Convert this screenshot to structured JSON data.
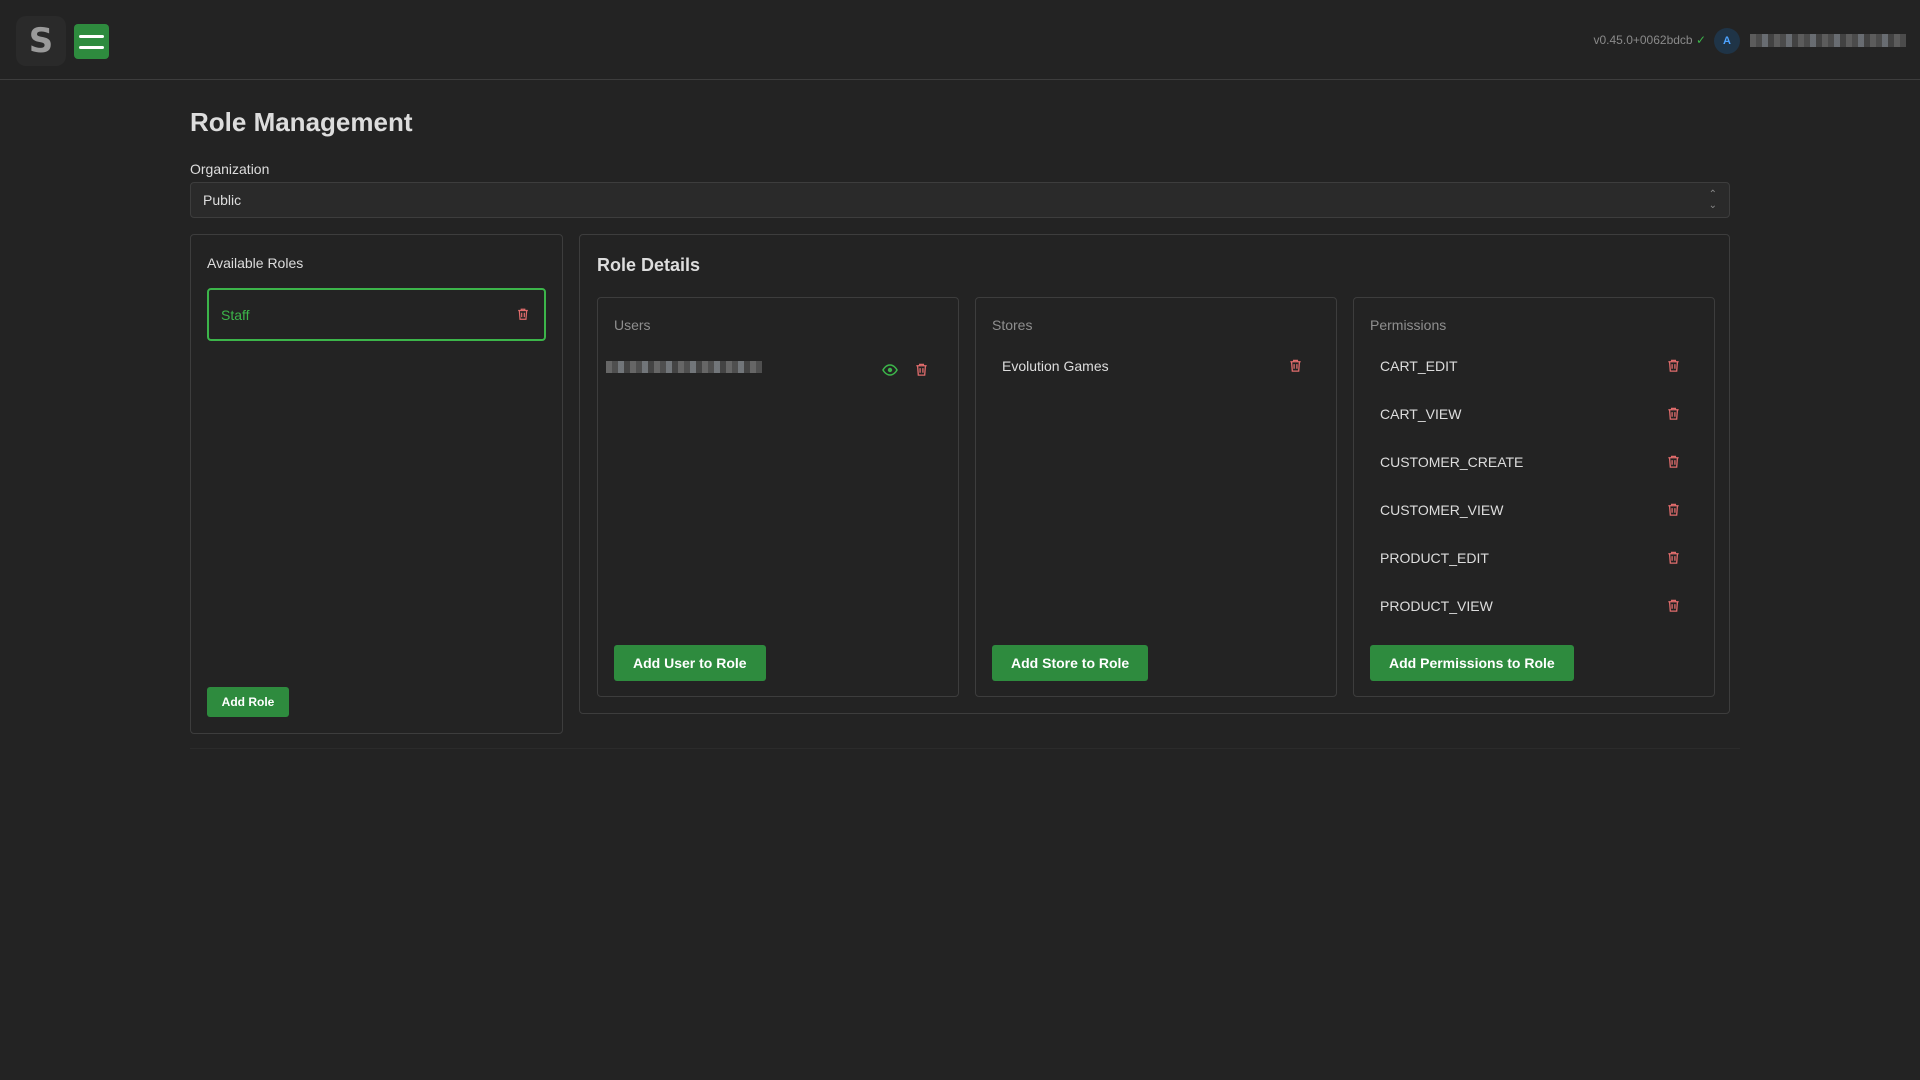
{
  "header": {
    "logo": "S",
    "version": "v0.45.0+0062bdcb",
    "version_ok_icon": "✓",
    "avatar_initial": "A"
  },
  "page": {
    "title": "Role Management",
    "org_label": "Organization",
    "org_value": "Public"
  },
  "roles": {
    "heading": "Available Roles",
    "items": [
      {
        "label": "Staff"
      }
    ],
    "add_label": "Add Role"
  },
  "details": {
    "title": "Role Details",
    "users": {
      "heading": "Users",
      "add_label": "Add User to Role"
    },
    "stores": {
      "heading": "Stores",
      "items": [
        "Evolution Games"
      ],
      "add_label": "Add Store to Role"
    },
    "permissions": {
      "heading": "Permissions",
      "items": [
        "CART_EDIT",
        "CART_VIEW",
        "CUSTOMER_CREATE",
        "CUSTOMER_VIEW",
        "PRODUCT_EDIT",
        "PRODUCT_VIEW"
      ],
      "add_label": "Add Permissions to Role"
    }
  },
  "colors": {
    "accent": "#2e8b3e",
    "selected_border": "#3cb54a",
    "danger": "#e06c6c",
    "background": "#232323"
  }
}
